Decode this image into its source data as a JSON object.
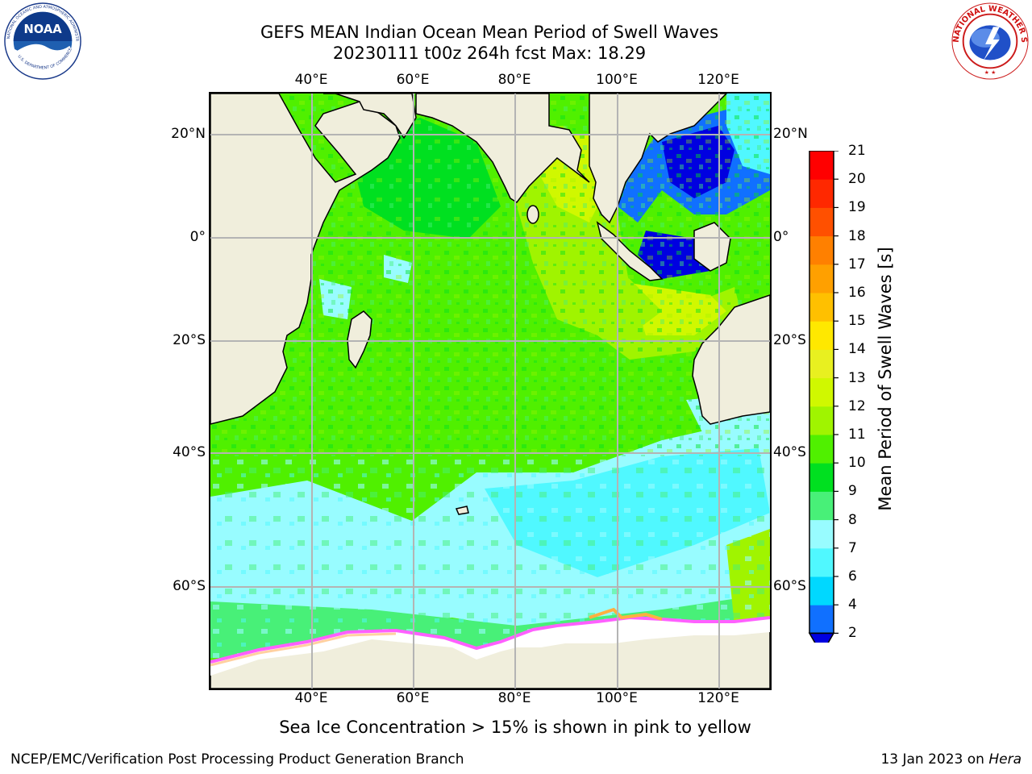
{
  "title": {
    "line1": "GEFS MEAN Indian Ocean Mean Period of Swell Waves",
    "line2": "20230111 t00z 264h fcst   Max: 18.29"
  },
  "logos": {
    "left": {
      "icon": "noaa-logo",
      "text": "NOAA",
      "ring_text": "NATIONAL OCEANIC AND ATMOSPHERIC ADMINISTRATION · U.S. DEPARTMENT OF COMMERCE"
    },
    "right": {
      "icon": "nws-logo",
      "ring_text": "NATIONAL WEATHER SERVICE"
    }
  },
  "map": {
    "lon_labels": [
      "40°E",
      "60°E",
      "80°E",
      "100°E",
      "120°E"
    ],
    "lon_values": [
      40,
      60,
      80,
      100,
      120
    ],
    "lat_labels": [
      "20°N",
      "0°",
      "20°S",
      "40°S",
      "60°S"
    ],
    "lat_values": [
      20,
      0,
      -20,
      -40,
      -60
    ],
    "lon_range": [
      20,
      130
    ],
    "lat_range": [
      -75,
      28
    ],
    "gridlines": true,
    "colors": {
      "land": "#f0eedc",
      "ice": "#ffffff",
      "grid": "#b4b4b4",
      "coast": "#000000"
    }
  },
  "colorbar": {
    "label": "Mean Period of Swell Waves [s]",
    "ticks": [
      "2",
      "4",
      "6",
      "7",
      "8",
      "9",
      "10",
      "11",
      "12",
      "13",
      "14",
      "15",
      "16",
      "17",
      "18",
      "19",
      "20",
      "21"
    ],
    "colors": [
      "#1070ff",
      "#00d8ff",
      "#50f8ff",
      "#98fcff",
      "#48f078",
      "#00e020",
      "#50f000",
      "#a0f400",
      "#d0f800",
      "#e8f020",
      "#ffe800",
      "#ffc000",
      "#ffa000",
      "#ff8000",
      "#ff5000",
      "#ff2800",
      "#ff0000"
    ],
    "extend_below": "#0000e0"
  },
  "note": "Sea Ice Concentration > 15% is shown in pink to yellow",
  "footer": {
    "left": "NCEP/EMC/Verification Post Processing Product Generation Branch",
    "right_date": "13 Jan 2023 on ",
    "right_host": "Hera"
  }
}
